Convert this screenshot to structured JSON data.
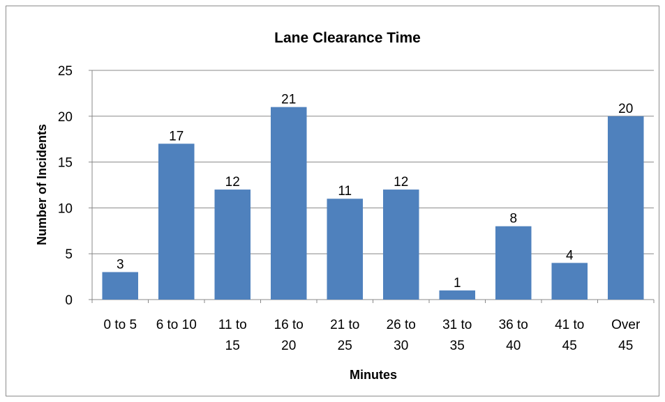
{
  "chart_data": {
    "type": "bar",
    "title": "Lane Clearance Time",
    "xlabel": "Minutes",
    "ylabel": "Number of Incidents",
    "categories": [
      [
        "0 to 5"
      ],
      [
        "6 to 10"
      ],
      [
        "11 to",
        "15"
      ],
      [
        "16 to",
        "20"
      ],
      [
        "21 to",
        "25"
      ],
      [
        "26 to",
        "30"
      ],
      [
        "31 to",
        "35"
      ],
      [
        "36 to",
        "40"
      ],
      [
        "41 to",
        "45"
      ],
      [
        "Over",
        "45"
      ]
    ],
    "values": [
      3,
      17,
      12,
      21,
      11,
      12,
      1,
      8,
      4,
      20
    ],
    "ylim": [
      0,
      25
    ],
    "yticks": [
      0,
      5,
      10,
      15,
      20,
      25
    ],
    "grid": true,
    "bar_color": "#4f81bd",
    "data_labels": true
  }
}
